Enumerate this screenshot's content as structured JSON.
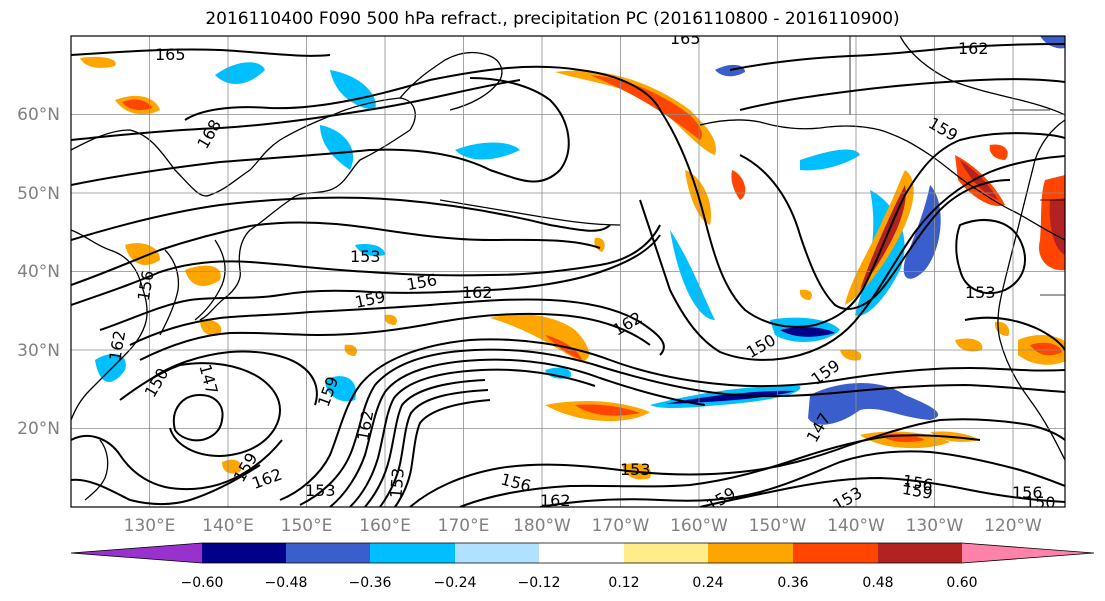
{
  "title": "2016110400 F090 500 hPa refract., precipitation PC (2016110800 - 2016110900)",
  "map": {
    "lat_labels": [
      "60°N",
      "50°N",
      "40°N",
      "30°N",
      "20°N"
    ],
    "lon_labels": [
      "130°E",
      "140°E",
      "150°E",
      "160°E",
      "170°E",
      "180°W",
      "170°W",
      "160°W",
      "150°W",
      "140°W",
      "130°W",
      "120°W"
    ],
    "contour_labels": [
      "165",
      "168",
      "162",
      "159",
      "153",
      "156",
      "159",
      "162",
      "162",
      "150",
      "150",
      "147",
      "156",
      "162",
      "159",
      "162",
      "153",
      "153",
      "156",
      "162",
      "153",
      "159",
      "147",
      "153",
      "156",
      "159",
      "156",
      "150",
      "159",
      "153",
      "162",
      "165"
    ]
  },
  "colorbar": {
    "ticks": [
      "−0.60",
      "−0.48",
      "−0.36",
      "−0.24",
      "−0.12",
      "0.12",
      "0.24",
      "0.36",
      "0.48",
      "0.60"
    ],
    "colors": [
      "#9932cc",
      "#00008b",
      "#3a5fcd",
      "#00bfff",
      "#b0e2ff",
      "#ffffff",
      "#ffec8b",
      "#ffa500",
      "#ff4500",
      "#b22222",
      "#ff82ab"
    ]
  }
}
